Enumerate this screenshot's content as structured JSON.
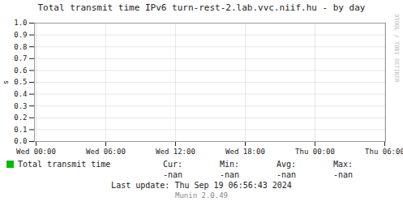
{
  "chart_data": {
    "type": "line",
    "title": "Total transmit time IPv6 turn-rest-2.lab.vvc.niif.hu - by day",
    "ylabel": "s",
    "categories": [
      "Wed 00:00",
      "Wed 06:00",
      "Wed 12:00",
      "Wed 18:00",
      "Thu 00:00",
      "Thu 06:00"
    ],
    "series": [
      {
        "name": "Total transmit time",
        "color": "#00bb00",
        "values": [
          null,
          null,
          null,
          null,
          null,
          null
        ]
      }
    ],
    "ylim": [
      0.0,
      1.0
    ],
    "yticks": [
      {
        "value": 0.0,
        "label": "0.0"
      },
      0.1,
      0.2,
      0.3,
      0.4,
      0.5,
      0.6,
      0.7,
      0.8,
      0.9,
      {
        "value": 1.0,
        "label": "1.0"
      }
    ],
    "grid": true,
    "legend": "bottom",
    "stats": [
      {
        "label": "Cur:",
        "value": "-nan"
      },
      {
        "label": "Min:",
        "value": "-nan"
      },
      {
        "label": "Avg:",
        "value": "-nan"
      },
      {
        "label": "Max:",
        "value": "-nan"
      }
    ],
    "annotations": [
      "Last update:  Thu Sep 19 06:56:43 2024",
      "Munin 2.0.49"
    ],
    "watermark": "RRDTOOL / TOBI OETIKER"
  }
}
